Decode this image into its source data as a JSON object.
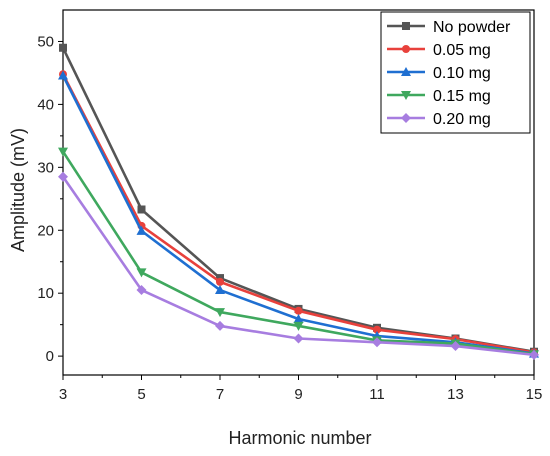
{
  "chart_data": {
    "type": "line",
    "title": "",
    "xlabel": "Harmonic number",
    "ylabel": "Amplitude (mV)",
    "x": [
      3,
      5,
      7,
      9,
      11,
      13,
      15
    ],
    "xlim": [
      3,
      15
    ],
    "ylim": [
      -3,
      55
    ],
    "xticks": [
      "3",
      "5",
      "7",
      "9",
      "11",
      "13",
      "15"
    ],
    "yticks": [
      "0",
      "10",
      "20",
      "30",
      "40",
      "50"
    ],
    "yticks_values": [
      0,
      10,
      20,
      30,
      40,
      50
    ],
    "grid": false,
    "legend_position": "top-right",
    "series": [
      {
        "name": "No powder",
        "color": "#555555",
        "marker": "square",
        "values": [
          49.0,
          23.3,
          12.4,
          7.5,
          4.5,
          2.8,
          0.7
        ]
      },
      {
        "name": "0.05 mg",
        "color": "#e8413c",
        "marker": "circle",
        "values": [
          44.8,
          20.7,
          11.8,
          7.2,
          4.2,
          2.7,
          0.6
        ]
      },
      {
        "name": "0.10 mg",
        "color": "#1f6fd1",
        "marker": "triangle-up",
        "values": [
          44.6,
          19.9,
          10.5,
          5.9,
          3.2,
          2.2,
          0.4
        ]
      },
      {
        "name": "0.15 mg",
        "color": "#3fa85e",
        "marker": "triangle-down",
        "values": [
          32.5,
          13.3,
          7.0,
          4.8,
          2.5,
          2.0,
          0.3
        ]
      },
      {
        "name": "0.20 mg",
        "color": "#a77de0",
        "marker": "diamond",
        "values": [
          28.5,
          10.5,
          4.8,
          2.8,
          2.2,
          1.6,
          0.2
        ]
      }
    ]
  }
}
